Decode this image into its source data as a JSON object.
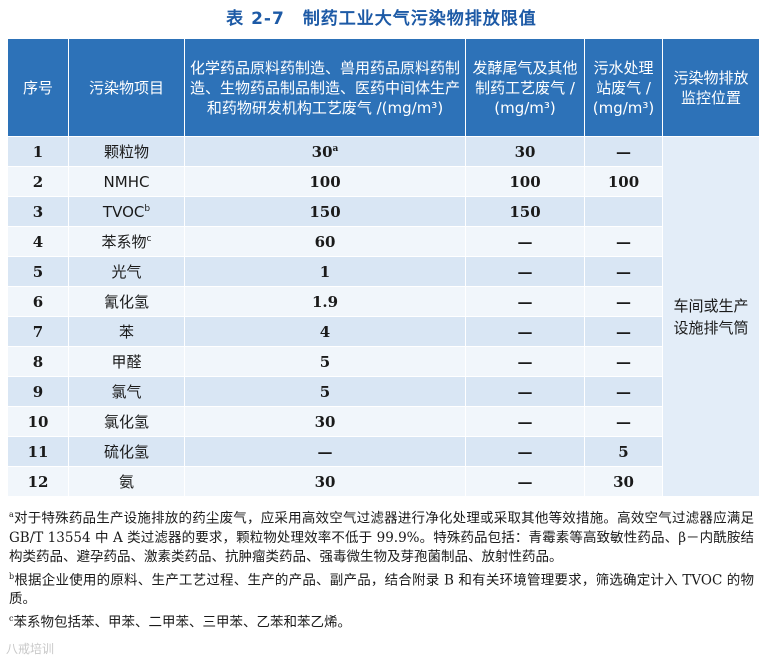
{
  "title": {
    "number": "表 2-7",
    "text": "制药工业大气污染物排放限值"
  },
  "headers": {
    "seq": "序号",
    "item": "污染物项目",
    "col1": "化学药品原料药制造、兽用药品原料药制造、生物药品制品制造、医药中间体生产和药物研发机构工艺废气 /(mg/m³)",
    "col2": "发酵尾气及其他制药工艺废气 / (mg/m³)",
    "col3": "污水处理站废气 / (mg/m³)",
    "col4": "污染物排放监控位置"
  },
  "rows": [
    {
      "seq": "1",
      "item": "颗粒物",
      "item_sup": "",
      "v1": "30",
      "v1_sup": "a",
      "v2": "30",
      "v3": "—"
    },
    {
      "seq": "2",
      "item": "NMHC",
      "item_sup": "",
      "v1": "100",
      "v1_sup": "",
      "v2": "100",
      "v3": "100"
    },
    {
      "seq": "3",
      "item": "TVOC",
      "item_sup": "b",
      "v1": "150",
      "v1_sup": "",
      "v2": "150",
      "v3": ""
    },
    {
      "seq": "4",
      "item": "苯系物",
      "item_sup": "c",
      "v1": "60",
      "v1_sup": "",
      "v2": "—",
      "v3": "—"
    },
    {
      "seq": "5",
      "item": "光气",
      "item_sup": "",
      "v1": "1",
      "v1_sup": "",
      "v2": "—",
      "v3": "—"
    },
    {
      "seq": "6",
      "item": "氰化氢",
      "item_sup": "",
      "v1": "1.9",
      "v1_sup": "",
      "v2": "—",
      "v3": "—"
    },
    {
      "seq": "7",
      "item": "苯",
      "item_sup": "",
      "v1": "4",
      "v1_sup": "",
      "v2": "—",
      "v3": "—"
    },
    {
      "seq": "8",
      "item": "甲醛",
      "item_sup": "",
      "v1": "5",
      "v1_sup": "",
      "v2": "—",
      "v3": "—"
    },
    {
      "seq": "9",
      "item": "氯气",
      "item_sup": "",
      "v1": "5",
      "v1_sup": "",
      "v2": "—",
      "v3": "—"
    },
    {
      "seq": "10",
      "item": "氯化氢",
      "item_sup": "",
      "v1": "30",
      "v1_sup": "",
      "v2": "—",
      "v3": "—"
    },
    {
      "seq": "11",
      "item": "硫化氢",
      "item_sup": "",
      "v1": "—",
      "v1_sup": "",
      "v2": "—",
      "v3": "5"
    },
    {
      "seq": "12",
      "item": "氨",
      "item_sup": "",
      "v1": "30",
      "v1_sup": "",
      "v2": "—",
      "v3": "30"
    }
  ],
  "location": "车间或生产设施排气筒",
  "notes": {
    "a_mark": "a",
    "a_text": "对于特殊药品生产设施排放的药尘废气，应采用高效空气过滤器进行净化处理或采取其他等效措施。高效空气过滤器应满足 GB/T 13554 中 A 类过滤器的要求，颗粒物处理效率不低于 99.9%。特殊药品包括：青霉素等高致敏性药品、β－内酰胺结构类药品、避孕药品、激素类药品、抗肿瘤类药品、强毒微生物及芽孢菌制品、放射性药品。",
    "b_mark": "b",
    "b_text": "根据企业使用的原料、生产工艺过程、生产的产品、副产品，结合附录 B 和有关环境管理要求，筛选确定计入 TVOC 的物质。",
    "c_mark": "c",
    "c_text": "苯系物包括苯、甲苯、二甲苯、三甲苯、乙苯和苯乙烯。"
  },
  "watermark": "八戒培训",
  "colors": {
    "header_bg": "#2d72b8",
    "row_odd": "#d9e6f4",
    "row_even": "#f1f6fb",
    "title": "#1d5aa6"
  }
}
